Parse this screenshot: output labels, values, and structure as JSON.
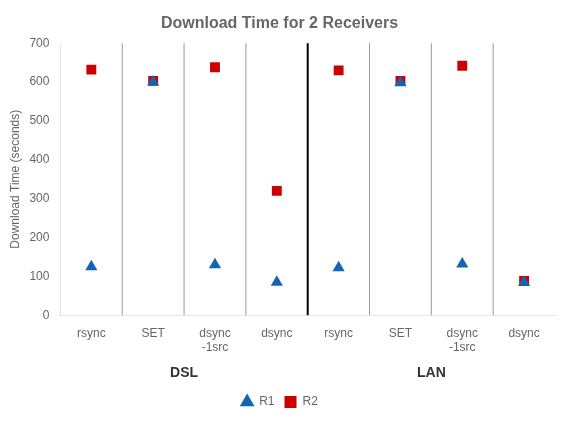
{
  "chart_data": {
    "type": "scatter",
    "title": "Download Time for 2 Receivers",
    "ylabel": "Download Time (seconds)",
    "categories": [
      "rsync",
      "SET",
      "dsync\n-1src",
      "dsync",
      "rsync",
      "SET",
      "dsync\n-1src",
      "dsync"
    ],
    "series": [
      {
        "name": "R1",
        "color": "#1464b4",
        "marker": "triangle",
        "values": [
          125,
          600,
          130,
          85,
          122,
          598,
          132,
          85
        ]
      },
      {
        "name": "R2",
        "color": "#cc0000",
        "marker": "square",
        "values": [
          632,
          603,
          638,
          320,
          630,
          603,
          642,
          88
        ]
      }
    ],
    "ylim": [
      0,
      700
    ],
    "yticks": [
      0,
      100,
      200,
      300,
      400,
      500,
      600,
      700
    ],
    "grid": false,
    "legend": "bottom",
    "annotations": [
      "DSL",
      "LAN"
    ]
  }
}
